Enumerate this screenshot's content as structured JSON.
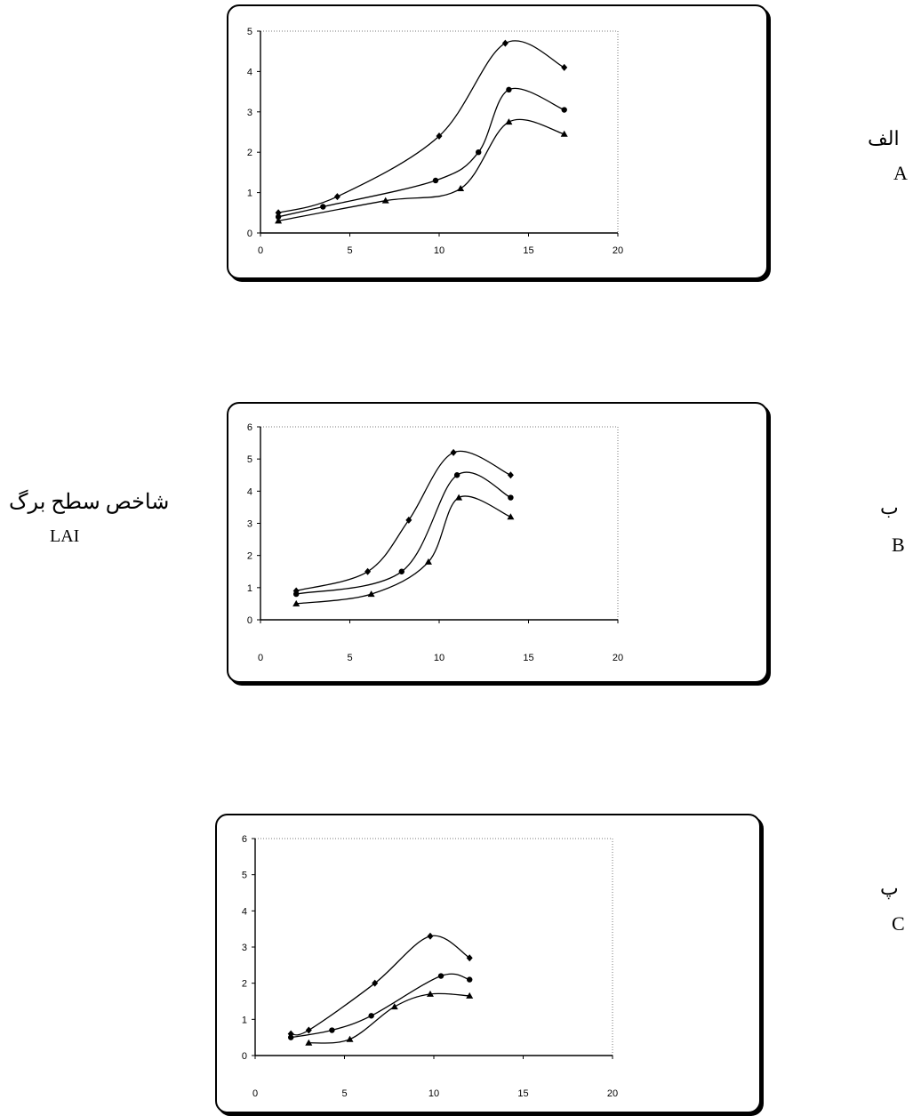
{
  "ylabel_fa": "شاخص سطح برگ",
  "ylabel_en": "LAI",
  "panels": [
    {
      "label_fa": "الف",
      "label_en": "A"
    },
    {
      "label_fa": "ب",
      "label_en": "B"
    },
    {
      "label_fa": "پ",
      "label_en": "C"
    }
  ],
  "chart_data": [
    {
      "type": "line",
      "title": "",
      "xlabel": "",
      "ylabel": "",
      "xlim": [
        0,
        20
      ],
      "ylim": [
        0,
        5
      ],
      "xticks": [
        0,
        5,
        10,
        15,
        20
      ],
      "yticks": [
        0,
        1,
        2,
        3,
        4,
        5
      ],
      "grid": false,
      "series": [
        {
          "marker": "diamond",
          "x": [
            1,
            4.3,
            10,
            13.7,
            17
          ],
          "y": [
            0.5,
            0.9,
            2.4,
            4.7,
            4.1
          ]
        },
        {
          "marker": "circle",
          "x": [
            1,
            3.5,
            9.8,
            12.2,
            13.9,
            17
          ],
          "y": [
            0.4,
            0.65,
            1.3,
            2.0,
            3.55,
            3.05
          ]
        },
        {
          "marker": "triangle",
          "x": [
            1,
            7,
            11.2,
            13.9,
            17
          ],
          "y": [
            0.3,
            0.8,
            1.1,
            2.75,
            2.45
          ]
        }
      ]
    },
    {
      "type": "line",
      "title": "",
      "xlabel": "",
      "ylabel": "",
      "xlim": [
        0,
        20
      ],
      "ylim": [
        0,
        6
      ],
      "xticks": [
        0,
        5,
        10,
        15,
        20
      ],
      "yticks": [
        0,
        1,
        2,
        3,
        4,
        5,
        6
      ],
      "grid": false,
      "series": [
        {
          "marker": "diamond",
          "x": [
            2,
            6,
            8.3,
            10.8,
            14
          ],
          "y": [
            0.9,
            1.5,
            3.1,
            5.2,
            4.5
          ]
        },
        {
          "marker": "circle",
          "x": [
            2,
            7.9,
            11,
            14
          ],
          "y": [
            0.8,
            1.5,
            4.5,
            3.8
          ]
        },
        {
          "marker": "triangle",
          "x": [
            2,
            6.2,
            9.4,
            11.1,
            14
          ],
          "y": [
            0.5,
            0.8,
            1.8,
            3.8,
            3.2
          ]
        }
      ]
    },
    {
      "type": "line",
      "title": "",
      "xlabel": "",
      "ylabel": "",
      "xlim": [
        0,
        20
      ],
      "ylim": [
        0,
        6
      ],
      "xticks": [
        0,
        5,
        10,
        15,
        20
      ],
      "yticks": [
        0,
        1,
        2,
        3,
        4,
        5,
        6
      ],
      "grid": false,
      "series": [
        {
          "marker": "diamond",
          "x": [
            2,
            3,
            6.7,
            9.8,
            12
          ],
          "y": [
            0.6,
            0.7,
            2.0,
            3.3,
            2.7
          ]
        },
        {
          "marker": "circle",
          "x": [
            2,
            4.3,
            6.5,
            10.4,
            12
          ],
          "y": [
            0.5,
            0.7,
            1.1,
            2.2,
            2.1
          ]
        },
        {
          "marker": "triangle",
          "x": [
            3,
            5.3,
            7.8,
            9.8,
            12
          ],
          "y": [
            0.35,
            0.45,
            1.35,
            1.7,
            1.65
          ]
        }
      ]
    }
  ]
}
